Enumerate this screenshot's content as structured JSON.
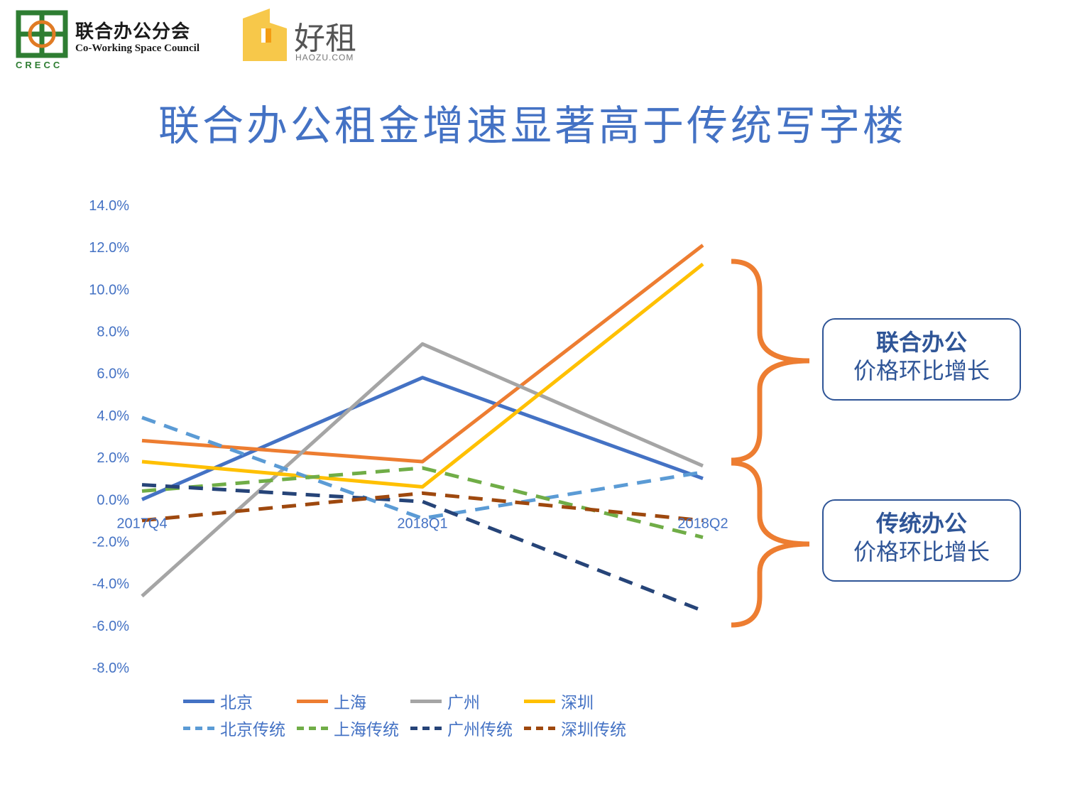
{
  "header": {
    "logo_council": {
      "name": "联合办公分会",
      "english": "Co-Working Space Council",
      "abbr": "CRECC"
    },
    "logo_haozu": {
      "name": "好租",
      "english": "HAOZU.COM"
    },
    "title": "联合办公租金增速显著高于传统写字楼"
  },
  "colors": {
    "title": "#4472c4",
    "brace": "#ed7d31",
    "box_border": "#2f5597",
    "logo_green": "#2e7d32",
    "logo_orange": "#e07b24",
    "logo_yellow": "#f7c84a"
  },
  "annotations": {
    "box_top": {
      "line1": "联合办公",
      "line2": "价格环比增长"
    },
    "box_bottom": {
      "line1": "传统办公",
      "line2": "价格环比增长"
    }
  },
  "chart_data": {
    "type": "line",
    "categories": [
      "2017Q4",
      "2018Q1",
      "2018Q2"
    ],
    "ylim": [
      -8,
      14
    ],
    "yticks": [
      "14.0%",
      "12.0%",
      "10.0%",
      "8.0%",
      "6.0%",
      "4.0%",
      "2.0%",
      "0.0%",
      "-2.0%",
      "-4.0%",
      "-6.0%",
      "-8.0%"
    ],
    "ytick_values": [
      14,
      12,
      10,
      8,
      6,
      4,
      2,
      0,
      -2,
      -4,
      -6,
      -8
    ],
    "grid": false,
    "legend_position": "bottom",
    "series": [
      {
        "name": "北京",
        "values": [
          0.0,
          5.8,
          1.0
        ],
        "color": "#4472c4",
        "dashed": false
      },
      {
        "name": "上海",
        "values": [
          2.8,
          1.8,
          12.1
        ],
        "color": "#ed7d31",
        "dashed": false
      },
      {
        "name": "广州",
        "values": [
          -4.6,
          7.4,
          1.6
        ],
        "color": "#a5a5a5",
        "dashed": false
      },
      {
        "name": "深圳",
        "values": [
          1.8,
          0.6,
          11.2
        ],
        "color": "#ffc000",
        "dashed": false
      },
      {
        "name": "北京传统",
        "values": [
          3.9,
          -0.9,
          1.3
        ],
        "color": "#5b9bd5",
        "dashed": true
      },
      {
        "name": "上海传统",
        "values": [
          0.4,
          1.5,
          -1.8
        ],
        "color": "#70ad47",
        "dashed": true
      },
      {
        "name": "广州传统",
        "values": [
          0.7,
          -0.1,
          -5.3
        ],
        "color": "#264478",
        "dashed": true
      },
      {
        "name": "深圳传统",
        "values": [
          -1.0,
          0.3,
          -1.0
        ],
        "color": "#9e480e",
        "dashed": true
      }
    ]
  }
}
